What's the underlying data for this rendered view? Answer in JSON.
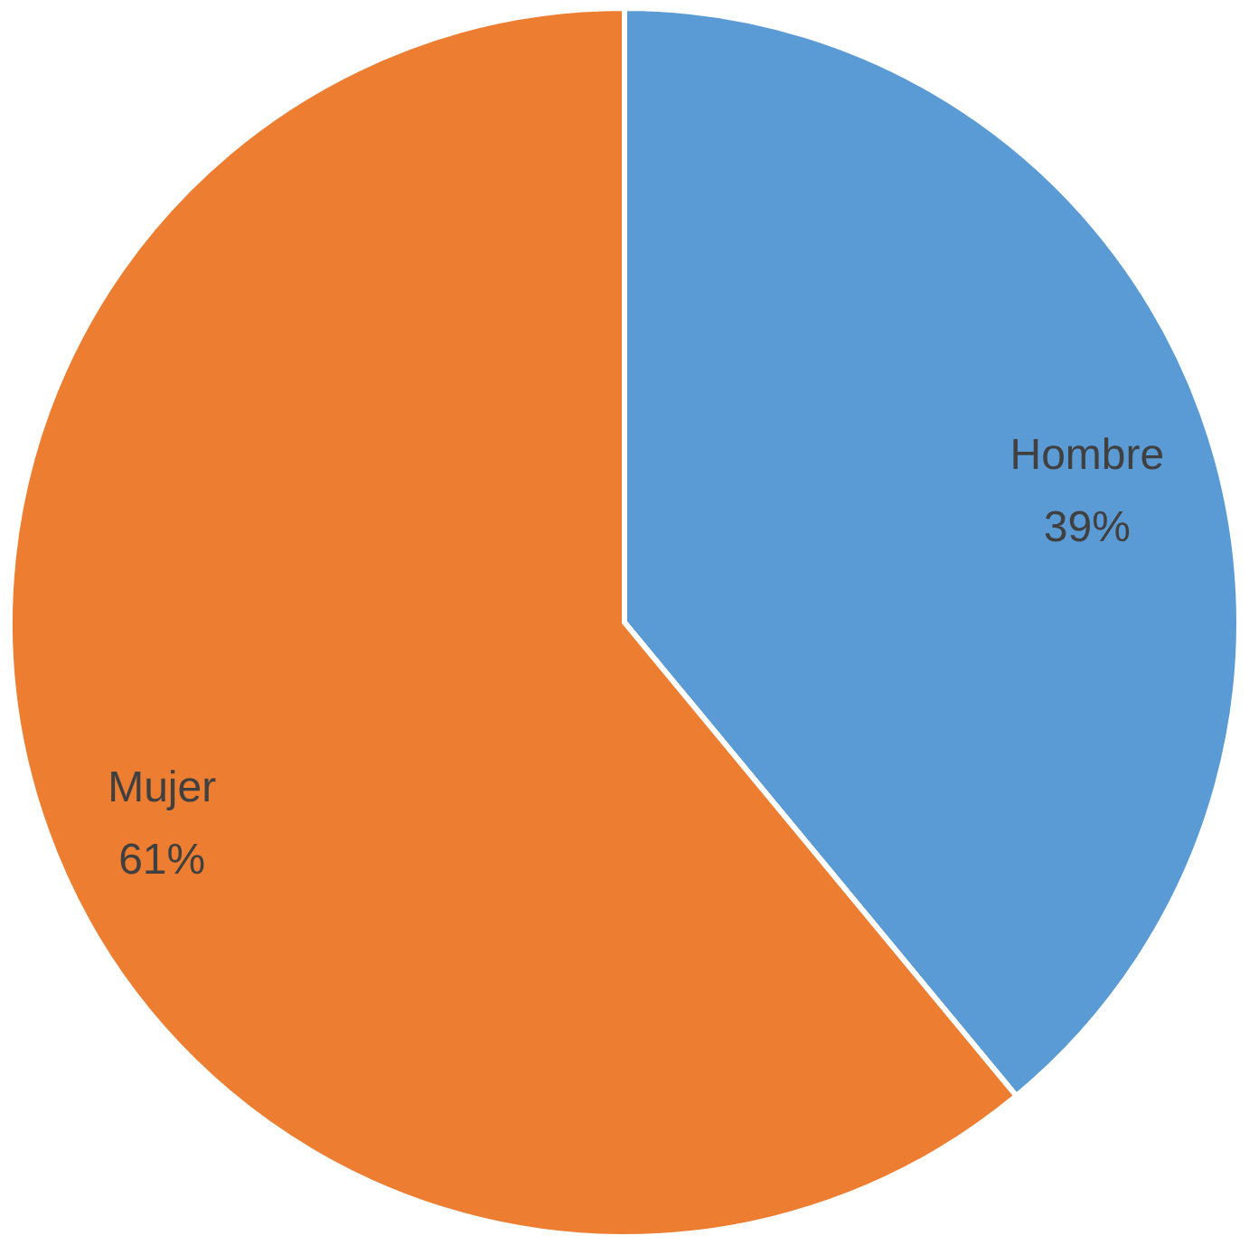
{
  "chart_data": {
    "type": "pie",
    "categories": [
      "Hombre",
      "Mujer"
    ],
    "values": [
      39,
      61
    ],
    "colors": [
      "#5b9bd5",
      "#ed7d31"
    ],
    "value_labels": [
      "39%",
      "61%"
    ]
  }
}
